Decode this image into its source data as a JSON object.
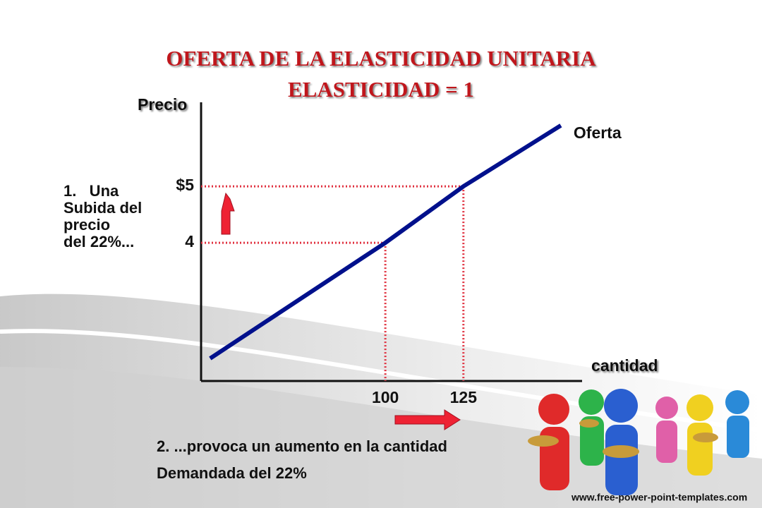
{
  "chart_data": {
    "type": "line",
    "title": [
      "OFERTA DE LA ELASTICIDAD UNITARIA",
      "ELASTICIDAD = 1"
    ],
    "y_label": "Precio",
    "x_label": "cantidad",
    "xlim": [
      41,
      163
    ],
    "ylim": [
      1.55,
      6.49
    ],
    "xticks": [
      100,
      125
    ],
    "yticks": [
      4,
      {
        "value": 5,
        "label": "$5"
      }
    ],
    "series": [
      {
        "name": "Oferta",
        "color": "#00108c",
        "x": [
          43.9,
          100,
          125,
          156.2
        ],
        "values": [
          1.95,
          4,
          5,
          6.08
        ]
      }
    ],
    "reference_color": "#e0303f",
    "annotations": [
      [
        "1.   Una",
        "Subida del",
        "precio",
        "del 22%..."
      ],
      [
        "2. ...provoca un aumento en la cantidad",
        "Demandada del 22%"
      ]
    ],
    "footer": "www.free-power-point-templates.com"
  }
}
